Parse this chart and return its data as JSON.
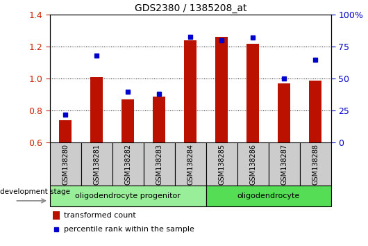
{
  "title": "GDS2380 / 1385208_at",
  "samples": [
    "GSM138280",
    "GSM138281",
    "GSM138282",
    "GSM138283",
    "GSM138284",
    "GSM138285",
    "GSM138286",
    "GSM138287",
    "GSM138288"
  ],
  "transformed_count": [
    0.74,
    1.01,
    0.87,
    0.89,
    1.24,
    1.26,
    1.22,
    0.97,
    0.99
  ],
  "percentile_rank": [
    22,
    68,
    40,
    38,
    83,
    80,
    82,
    50,
    65
  ],
  "ylim_left": [
    0.6,
    1.4
  ],
  "ylim_right": [
    0,
    100
  ],
  "yticks_left": [
    0.6,
    0.8,
    1.0,
    1.2,
    1.4
  ],
  "yticks_right": [
    0,
    25,
    50,
    75,
    100
  ],
  "ytick_labels_right": [
    "0",
    "25",
    "50",
    "75",
    "100%"
  ],
  "bar_color": "#bb1100",
  "dot_color": "#0000cc",
  "groups": [
    {
      "label": "oligodendrocyte progenitor",
      "indices": [
        0,
        1,
        2,
        3,
        4
      ],
      "color": "#99ee99"
    },
    {
      "label": "oligodendrocyte",
      "indices": [
        5,
        6,
        7,
        8
      ],
      "color": "#55dd55"
    }
  ],
  "sample_box_color": "#cccccc",
  "dev_stage_label": "development stage",
  "legend_bar_label": "transformed count",
  "legend_dot_label": "percentile rank within the sample"
}
